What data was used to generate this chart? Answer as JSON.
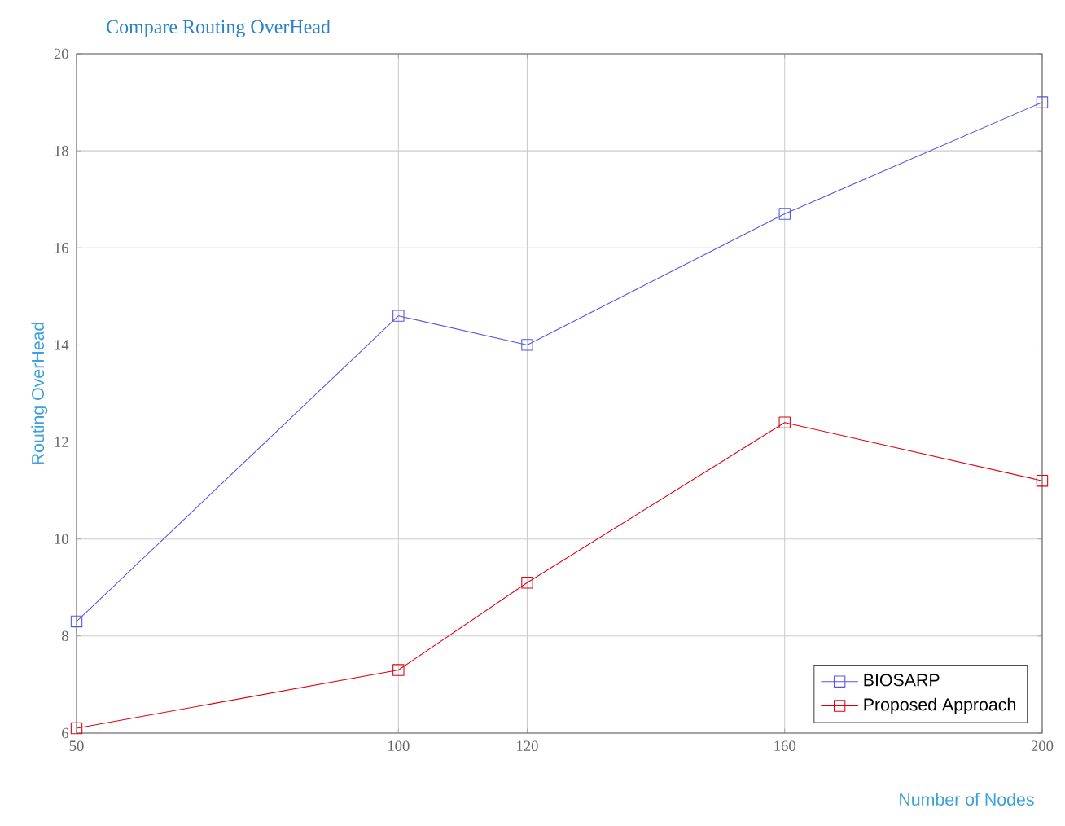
{
  "chart_data": {
    "type": "line",
    "title": "Compare Routing OverHead",
    "xlabel": "Number of Nodes",
    "ylabel": "Routing OverHead",
    "x": [
      50,
      100,
      120,
      160,
      200
    ],
    "series": [
      {
        "name": "BIOSARP",
        "color": "#5555e0",
        "values": [
          8.3,
          14.6,
          14.0,
          16.7,
          19.0
        ]
      },
      {
        "name": "Proposed Approach",
        "color": "#e00010",
        "values": [
          6.1,
          7.3,
          9.1,
          12.4,
          11.2
        ]
      }
    ],
    "xlim": [
      50,
      200
    ],
    "ylim": [
      6,
      20
    ],
    "xticks": [
      50,
      100,
      120,
      160,
      200
    ],
    "yticks": [
      6,
      8,
      10,
      12,
      14,
      16,
      18,
      20
    ],
    "grid": true,
    "legend": "bottom right",
    "marker": "square",
    "line_style": "solid"
  }
}
